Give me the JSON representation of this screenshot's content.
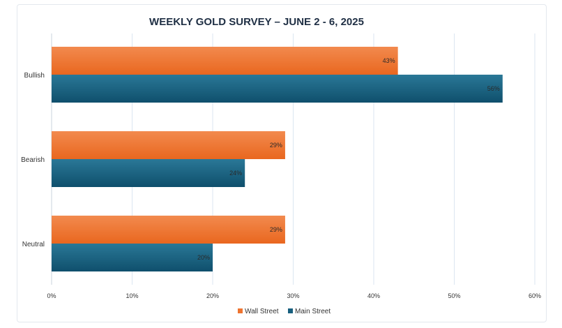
{
  "chart_data": {
    "type": "bar",
    "orientation": "horizontal",
    "title": "WEEKLY GOLD SURVEY – JUNE 2 - 6, 2025",
    "categories": [
      "Bullish",
      "Bearish",
      "Neutral"
    ],
    "series": [
      {
        "name": "Wall Street",
        "values": [
          43,
          29,
          29
        ],
        "labels": [
          "43%",
          "29%",
          "29%"
        ],
        "color": "#ee7430"
      },
      {
        "name": "Main Street",
        "values": [
          56,
          24,
          20
        ],
        "labels": [
          "56%",
          "24%",
          "20%"
        ],
        "color": "#175f7e"
      }
    ],
    "xlim": [
      0,
      60
    ],
    "ticks": [
      0,
      10,
      20,
      30,
      40,
      50,
      60
    ],
    "tick_labels": [
      "0%",
      "10%",
      "20%",
      "30%",
      "40%",
      "50%",
      "60%"
    ],
    "grid": true,
    "legend_position": "bottom"
  }
}
